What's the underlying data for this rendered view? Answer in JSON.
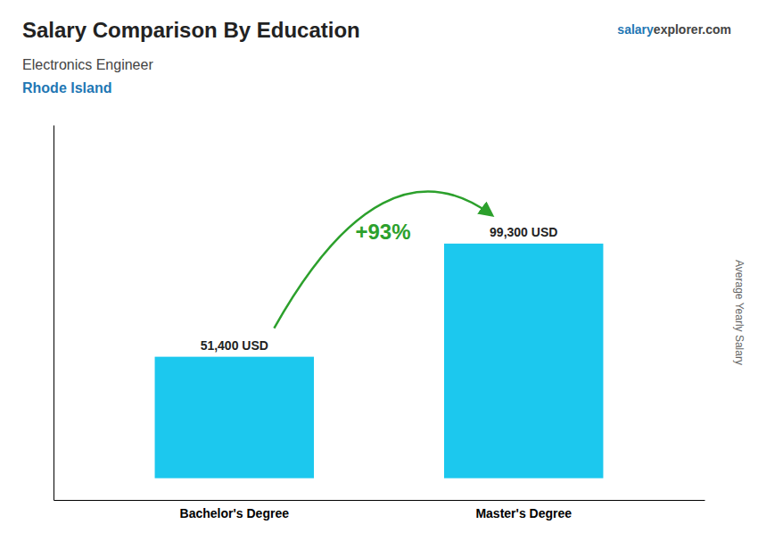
{
  "chart_data": {
    "type": "bar",
    "title": "Salary Comparison By Education",
    "subtitle": "Electronics Engineer",
    "ylabel": "Average Yearly Salary",
    "categories": [
      "Bachelor's Degree",
      "Master's Degree"
    ],
    "values": [
      51400,
      99300
    ],
    "value_labels": [
      "51,400 USD",
      "99,300 USD"
    ],
    "data_labels": true,
    "color": "#1CC8EE",
    "ylim": [
      -9200,
      149500
    ],
    "grid": false,
    "tick_labels": "x",
    "annotations": [
      {
        "text": "Rhode Island"
      },
      {
        "text": "+93%"
      },
      {
        "text": "salary"
      },
      {
        "text": "explorer.com"
      }
    ]
  }
}
